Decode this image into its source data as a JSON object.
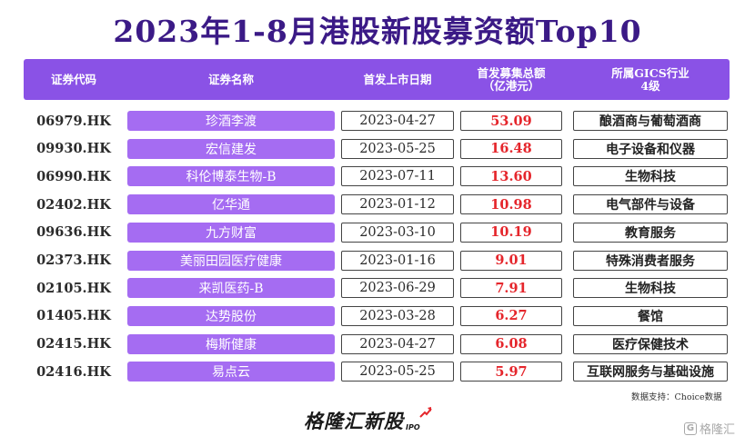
{
  "title": "2023年1-8月港股新股募资额Top10",
  "headers": {
    "code": "证券代码",
    "name": "证券名称",
    "date": "首发上市日期",
    "amount": "首发募集总额\n（亿港元）",
    "industry": "所属GICS行业\n4级"
  },
  "rows": [
    {
      "code": "06979.HK",
      "name": "珍酒李渡",
      "date": "2023-04-27",
      "amount": "53.09",
      "industry": "酿酒商与葡萄酒商"
    },
    {
      "code": "09930.HK",
      "name": "宏信建发",
      "date": "2023-05-25",
      "amount": "16.48",
      "industry": "电子设备和仪器"
    },
    {
      "code": "06990.HK",
      "name": "科伦博泰生物-B",
      "date": "2023-07-11",
      "amount": "13.60",
      "industry": "生物科技"
    },
    {
      "code": "02402.HK",
      "name": "亿华通",
      "date": "2023-01-12",
      "amount": "10.98",
      "industry": "电气部件与设备"
    },
    {
      "code": "09636.HK",
      "name": "九方财富",
      "date": "2023-03-10",
      "amount": "10.19",
      "industry": "教育服务"
    },
    {
      "code": "02373.HK",
      "name": "美丽田园医疗健康",
      "date": "2023-01-16",
      "amount": "9.01",
      "industry": "特殊消费者服务"
    },
    {
      "code": "02105.HK",
      "name": "来凯医药-B",
      "date": "2023-06-29",
      "amount": "7.91",
      "industry": "生物科技"
    },
    {
      "code": "01405.HK",
      "name": "达势股份",
      "date": "2023-03-28",
      "amount": "6.27",
      "industry": "餐馆"
    },
    {
      "code": "02415.HK",
      "name": "梅斯健康",
      "date": "2023-04-27",
      "amount": "6.08",
      "industry": "医疗保健技术"
    },
    {
      "code": "02416.HK",
      "name": "易点云",
      "date": "2023-05-25",
      "amount": "5.97",
      "industry": "互联网服务与基础设施"
    }
  ],
  "source": "数据支持：Choice数据",
  "logo": {
    "text": "格隆汇新股",
    "suffix": "IPO"
  },
  "watermark": {
    "icon": "G",
    "text": "格隆汇"
  },
  "colors": {
    "title": "#3b1a86",
    "header_bg": "#8a52e6",
    "name_bg": "#a56cf2",
    "amount": "#e5262c"
  }
}
